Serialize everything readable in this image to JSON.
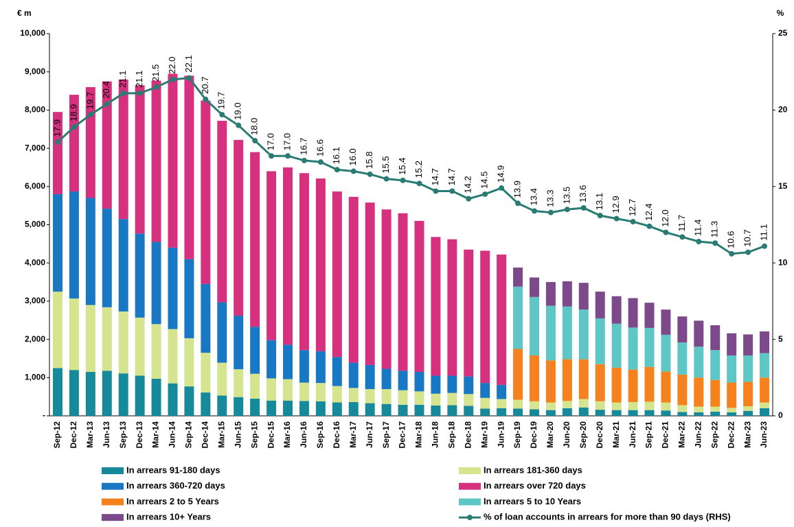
{
  "chart_data": {
    "type": "bar",
    "stacked": true,
    "y_label": "€ m",
    "y2_label": "%",
    "categories": [
      "Sep-12",
      "Dec-12",
      "Mar-13",
      "Jun-13",
      "Sep-13",
      "Dec-13",
      "Mar-14",
      "Jun-14",
      "Sep-14",
      "Dec-14",
      "Mar-15",
      "Jun-15",
      "Sep-15",
      "Dec-15",
      "Mar-16",
      "Jun-16",
      "Sep-16",
      "Dec-16",
      "Mar-17",
      "Jun-17",
      "Sep-17",
      "Dec-17",
      "Mar-18",
      "Jun-18",
      "Sep-18",
      "Dec-18",
      "Mar-19",
      "Jun-19",
      "Sep-19",
      "Dec-19",
      "Mar-20",
      "Jun-20",
      "Sep-20",
      "Dec-20",
      "Mar-21",
      "Jun-21",
      "Sep-21",
      "Dec-21",
      "Mar-22",
      "Jun-22",
      "Sep-22",
      "Dec-22",
      "Mar-23",
      "Jun-23"
    ],
    "ylim": [
      0,
      10000
    ],
    "yticks": [
      {
        "value": 0,
        "label": "-"
      },
      {
        "value": 1000,
        "label": "1,000"
      },
      {
        "value": 2000,
        "label": "2,000"
      },
      {
        "value": 3000,
        "label": "3,000"
      },
      {
        "value": 4000,
        "label": "4,000"
      },
      {
        "value": 5000,
        "label": "5,000"
      },
      {
        "value": 6000,
        "label": "6,000"
      },
      {
        "value": 7000,
        "label": "7,000"
      },
      {
        "value": 8000,
        "label": "8,000"
      },
      {
        "value": 9000,
        "label": "9,000"
      },
      {
        "value": 10000,
        "label": "10,000"
      }
    ],
    "y2lim": [
      0,
      25
    ],
    "y2ticks": [
      0,
      5,
      10,
      15,
      20,
      25
    ],
    "series": [
      {
        "name": "In arrears 91-180 days",
        "color": "#16899a",
        "values": [
          1250,
          1200,
          1150,
          1180,
          1110,
          1050,
          970,
          850,
          770,
          610,
          530,
          490,
          450,
          400,
          400,
          390,
          380,
          350,
          360,
          330,
          310,
          290,
          290,
          270,
          280,
          260,
          190,
          200,
          190,
          170,
          150,
          200,
          220,
          160,
          150,
          150,
          150,
          140,
          100,
          90,
          110,
          90,
          130,
          200
        ]
      },
      {
        "name": "In arrears 181-360 days",
        "color": "#d5e48f",
        "values": [
          2000,
          1870,
          1750,
          1660,
          1620,
          1520,
          1430,
          1420,
          1260,
          1040,
          860,
          730,
          650,
          580,
          560,
          480,
          480,
          430,
          370,
          370,
          390,
          380,
          350,
          310,
          320,
          310,
          280,
          240,
          230,
          210,
          200,
          190,
          220,
          220,
          200,
          210,
          220,
          210,
          180,
          150,
          130,
          120,
          120,
          150
        ]
      },
      {
        "name": "In arrears 360-720 days",
        "color": "#1878c3",
        "values": [
          2550,
          2800,
          2800,
          2580,
          2420,
          2200,
          2150,
          2130,
          2070,
          1800,
          1580,
          1400,
          1230,
          1000,
          900,
          850,
          830,
          760,
          660,
          630,
          530,
          510,
          510,
          470,
          450,
          460,
          390,
          370,
          null,
          null,
          null,
          null,
          null,
          null,
          null,
          null,
          null,
          null,
          null,
          null,
          null,
          null,
          null,
          null
        ]
      },
      {
        "name": "In arrears over 720 days",
        "color": "#d6317f",
        "values": [
          2150,
          2530,
          2900,
          3330,
          3650,
          3880,
          4220,
          4550,
          4800,
          4800,
          4750,
          4600,
          4570,
          4420,
          4640,
          4630,
          4520,
          4330,
          4340,
          4250,
          4170,
          4120,
          3950,
          3630,
          3570,
          3320,
          3460,
          3410,
          null,
          null,
          null,
          null,
          null,
          null,
          null,
          null,
          null,
          null,
          null,
          null,
          null,
          null,
          null,
          null
        ]
      },
      {
        "name": "In arrears 2 to 5 Years",
        "color": "#f5821f",
        "values": [
          null,
          null,
          null,
          null,
          null,
          null,
          null,
          null,
          null,
          null,
          null,
          null,
          null,
          null,
          null,
          null,
          null,
          null,
          null,
          null,
          null,
          null,
          null,
          null,
          null,
          null,
          null,
          null,
          1330,
          1200,
          1100,
          1090,
          1040,
          970,
          910,
          850,
          910,
          810,
          800,
          760,
          700,
          660,
          640,
          650
        ]
      },
      {
        "name": "In arrears 5 to 10 Years",
        "color": "#5ec7c5",
        "values": [
          null,
          null,
          null,
          null,
          null,
          null,
          null,
          null,
          null,
          null,
          null,
          null,
          null,
          null,
          null,
          null,
          null,
          null,
          null,
          null,
          null,
          null,
          null,
          null,
          null,
          null,
          null,
          null,
          1630,
          1530,
          1430,
          1380,
          1300,
          1200,
          1150,
          1100,
          1020,
          960,
          840,
          810,
          780,
          710,
          690,
          640
        ]
      },
      {
        "name": "In arrears 10+ Years",
        "color": "#7c4a8b",
        "values": [
          null,
          null,
          null,
          null,
          null,
          null,
          null,
          null,
          null,
          null,
          null,
          null,
          null,
          null,
          null,
          null,
          null,
          null,
          null,
          null,
          null,
          null,
          null,
          null,
          null,
          null,
          null,
          null,
          500,
          510,
          620,
          660,
          700,
          700,
          720,
          770,
          660,
          660,
          680,
          680,
          650,
          580,
          550,
          570
        ]
      },
      {
        "name": "% of loan accounts in arrears for more than 90 days (RHS)",
        "color": "#2a7b73",
        "type": "line",
        "axis": "y2",
        "values": [
          17.9,
          18.9,
          19.7,
          20.4,
          21.1,
          21.1,
          21.5,
          22.0,
          22.1,
          20.7,
          19.7,
          19.0,
          18.0,
          17.0,
          17.0,
          16.7,
          16.6,
          16.1,
          16.0,
          15.8,
          15.5,
          15.4,
          15.2,
          14.7,
          14.7,
          14.2,
          14.5,
          14.9,
          13.9,
          13.4,
          13.3,
          13.5,
          13.6,
          13.1,
          12.9,
          12.7,
          12.4,
          12.0,
          11.7,
          11.4,
          11.3,
          10.6,
          10.7,
          11.1
        ],
        "value_labels": [
          "17.9",
          "18.9",
          "19.7",
          "20.4",
          "21.1",
          "21.1",
          "21.5",
          "22.0",
          "22.1",
          "20.7",
          "19.7",
          "19.0",
          "18.0",
          "17.0",
          "17.0",
          "16.7",
          "16.6",
          "16.1",
          "16.0",
          "15.8",
          "15.5",
          "15.4",
          "15.2",
          "14.7",
          "14.7",
          "14.2",
          "14.5",
          "14.9",
          "13.9",
          "13.4",
          "13.3",
          "13.5",
          "13.6",
          "13.1",
          "12.9",
          "12.7",
          "12.4",
          "12.0",
          "11.7",
          "11.4",
          "11.3",
          "10.6",
          "10.7",
          "11.1"
        ]
      }
    ]
  }
}
